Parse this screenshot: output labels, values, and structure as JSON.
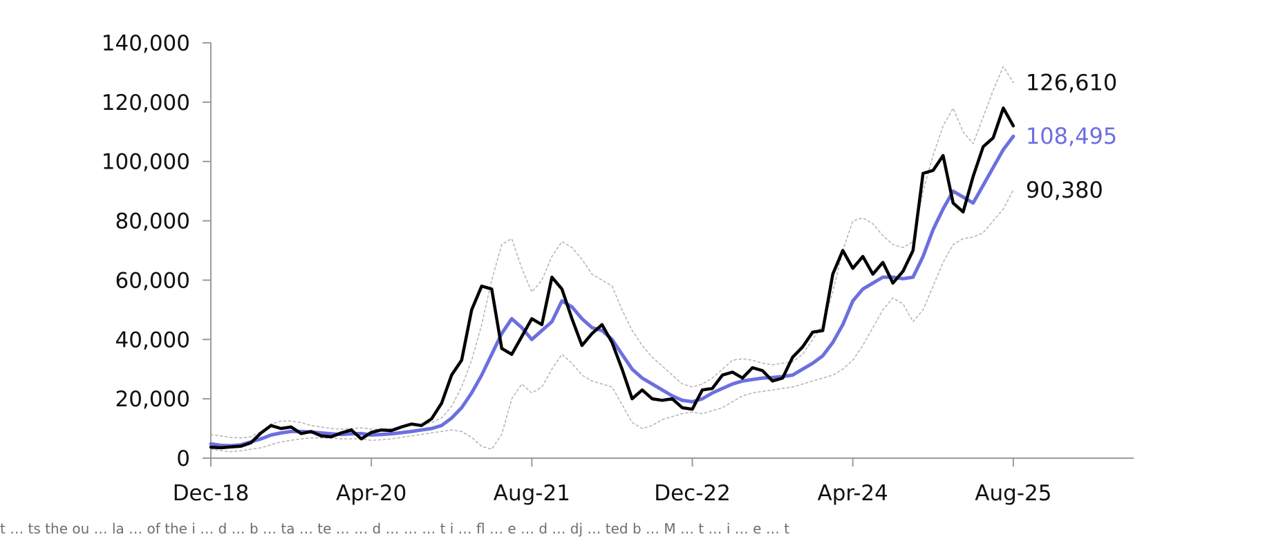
{
  "chart_data": {
    "type": "line",
    "title": "",
    "xlabel": "",
    "ylabel": "",
    "x_tick_labels": [
      "Dec-18",
      "Apr-20",
      "Aug-21",
      "Dec-22",
      "Apr-24",
      "Aug-25"
    ],
    "x_tick_dates": [
      "2018-12",
      "2020-04",
      "2021-08",
      "2022-12",
      "2024-04",
      "2025-08"
    ],
    "y_ticks": [
      0,
      20000,
      40000,
      60000,
      80000,
      100000,
      120000,
      140000
    ],
    "y_tick_labels": [
      "0",
      "20,000",
      "40,000",
      "60,000",
      "80,000",
      "100,000",
      "120,000",
      "140,000"
    ],
    "ylim": [
      0,
      140000
    ],
    "xlim": [
      "2018-12",
      "2026-08"
    ],
    "grid": false,
    "legend": "none",
    "x": [
      "2018-12",
      "2019-01",
      "2019-02",
      "2019-03",
      "2019-04",
      "2019-05",
      "2019-06",
      "2019-07",
      "2019-08",
      "2019-09",
      "2019-10",
      "2019-11",
      "2019-12",
      "2020-01",
      "2020-02",
      "2020-03",
      "2020-04",
      "2020-05",
      "2020-06",
      "2020-07",
      "2020-08",
      "2020-09",
      "2020-10",
      "2020-11",
      "2020-12",
      "2021-01",
      "2021-02",
      "2021-03",
      "2021-04",
      "2021-05",
      "2021-06",
      "2021-07",
      "2021-08",
      "2021-09",
      "2021-10",
      "2021-11",
      "2021-12",
      "2022-01",
      "2022-02",
      "2022-03",
      "2022-04",
      "2022-05",
      "2022-06",
      "2022-07",
      "2022-08",
      "2022-09",
      "2022-10",
      "2022-11",
      "2022-12",
      "2023-01",
      "2023-02",
      "2023-03",
      "2023-04",
      "2023-05",
      "2023-06",
      "2023-07",
      "2023-08",
      "2023-09",
      "2023-10",
      "2023-11",
      "2023-12",
      "2024-01",
      "2024-02",
      "2024-03",
      "2024-04",
      "2024-05",
      "2024-06",
      "2024-07",
      "2024-08",
      "2024-09",
      "2024-10",
      "2024-11",
      "2024-12",
      "2025-01",
      "2025-02",
      "2025-03",
      "2025-04",
      "2025-05",
      "2025-06",
      "2025-07",
      "2025-08"
    ],
    "series": [
      {
        "name": "",
        "color": "#000000",
        "style": "solid-thick",
        "values": [
          3700,
          3500,
          3800,
          4000,
          5200,
          8500,
          11000,
          10000,
          10500,
          8300,
          9000,
          7500,
          7200,
          8500,
          9500,
          6500,
          8700,
          9500,
          9300,
          10500,
          11500,
          11000,
          13200,
          18500,
          28000,
          33000,
          50000,
          58000,
          57000,
          37000,
          35000,
          41000,
          47000,
          45000,
          61000,
          57000,
          47000,
          38000,
          42000,
          45000,
          39000,
          30000,
          20000,
          23000,
          20000,
          19500,
          20000,
          17000,
          16500,
          23000,
          23500,
          28000,
          29000,
          27000,
          30500,
          29500,
          26000,
          27000,
          34000,
          37500,
          42500,
          43000,
          62000,
          70000,
          64000,
          68000,
          62000,
          66000,
          59000,
          63000,
          70000,
          96000,
          97000,
          102000,
          86000,
          83000,
          95000,
          105000,
          108000,
          118000,
          112000
        ]
      },
      {
        "name": "",
        "color": "#6c6fde",
        "style": "solid",
        "values": [
          4800,
          4300,
          4200,
          4500,
          5500,
          6500,
          7800,
          8500,
          9000,
          9000,
          8800,
          8500,
          8200,
          8000,
          8200,
          8300,
          7800,
          8000,
          8200,
          8600,
          9000,
          9500,
          10000,
          11000,
          13500,
          17000,
          22000,
          28000,
          35000,
          42000,
          47000,
          44000,
          40000,
          43000,
          46000,
          53000,
          51000,
          47000,
          44000,
          43000,
          40000,
          35000,
          30000,
          27000,
          25000,
          23000,
          21000,
          19500,
          19000,
          20000,
          22000,
          23500,
          25000,
          26000,
          26500,
          27000,
          27200,
          27500,
          28000,
          30000,
          32000,
          34500,
          39000,
          45000,
          53000,
          57000,
          59000,
          61000,
          61000,
          60500,
          61000,
          68000,
          77000,
          84000,
          90000,
          88000,
          86000,
          92000,
          98000,
          104000,
          108495
        ]
      },
      {
        "name": "",
        "color": "#b5b5b5",
        "style": "dotted",
        "values": [
          8000,
          7500,
          7000,
          6800,
          7200,
          9000,
          11500,
          12500,
          12500,
          12000,
          11000,
          10500,
          10000,
          9800,
          10000,
          10200,
          9800,
          9800,
          10000,
          10500,
          11000,
          11500,
          12000,
          13500,
          17500,
          24000,
          33000,
          45000,
          60000,
          72000,
          74000,
          64000,
          56000,
          60000,
          68000,
          73000,
          71000,
          67000,
          62000,
          60000,
          58000,
          50000,
          43000,
          38000,
          34000,
          31000,
          28000,
          25000,
          24000,
          25000,
          27000,
          30000,
          33000,
          33500,
          33000,
          32000,
          31500,
          32000,
          32500,
          35000,
          40000,
          45000,
          56000,
          70000,
          80000,
          81000,
          79000,
          75000,
          72000,
          71000,
          73000,
          90000,
          102000,
          112000,
          118000,
          110000,
          106000,
          115000,
          124000,
          132000,
          126610
        ]
      },
      {
        "name": "",
        "color": "#b5b5b5",
        "style": "dotted",
        "values": [
          3000,
          2500,
          2200,
          2500,
          3000,
          3500,
          4500,
          5500,
          6000,
          6500,
          6800,
          6800,
          6800,
          6500,
          6500,
          6500,
          6000,
          6200,
          6500,
          7000,
          7500,
          8000,
          8500,
          9000,
          9500,
          9000,
          7000,
          4000,
          3000,
          8000,
          20000,
          25000,
          22000,
          24000,
          30000,
          35000,
          32000,
          28000,
          26000,
          25000,
          24000,
          18000,
          12000,
          10000,
          11000,
          13000,
          14000,
          15000,
          15500,
          15000,
          16000,
          17000,
          19000,
          21000,
          22000,
          22500,
          23000,
          23500,
          24000,
          25000,
          26000,
          27000,
          28000,
          30000,
          33000,
          38000,
          44000,
          50000,
          54000,
          52000,
          46000,
          50000,
          58000,
          66000,
          72000,
          74000,
          74500,
          76000,
          80000,
          84000,
          90380
        ]
      }
    ],
    "end_labels": [
      {
        "text": "126,610",
        "value": 126610,
        "color": "#111111"
      },
      {
        "text": "108,495",
        "value": 108495,
        "color": "#6c6fde"
      },
      {
        "text": "90,380",
        "value": 90380,
        "color": "#111111"
      }
    ]
  },
  "footnote": "t … ts the ou … la … of the i … d … b … ta … te … … d … … … t i … fl … e … d … dj … ted b … M … t … i … e … t"
}
